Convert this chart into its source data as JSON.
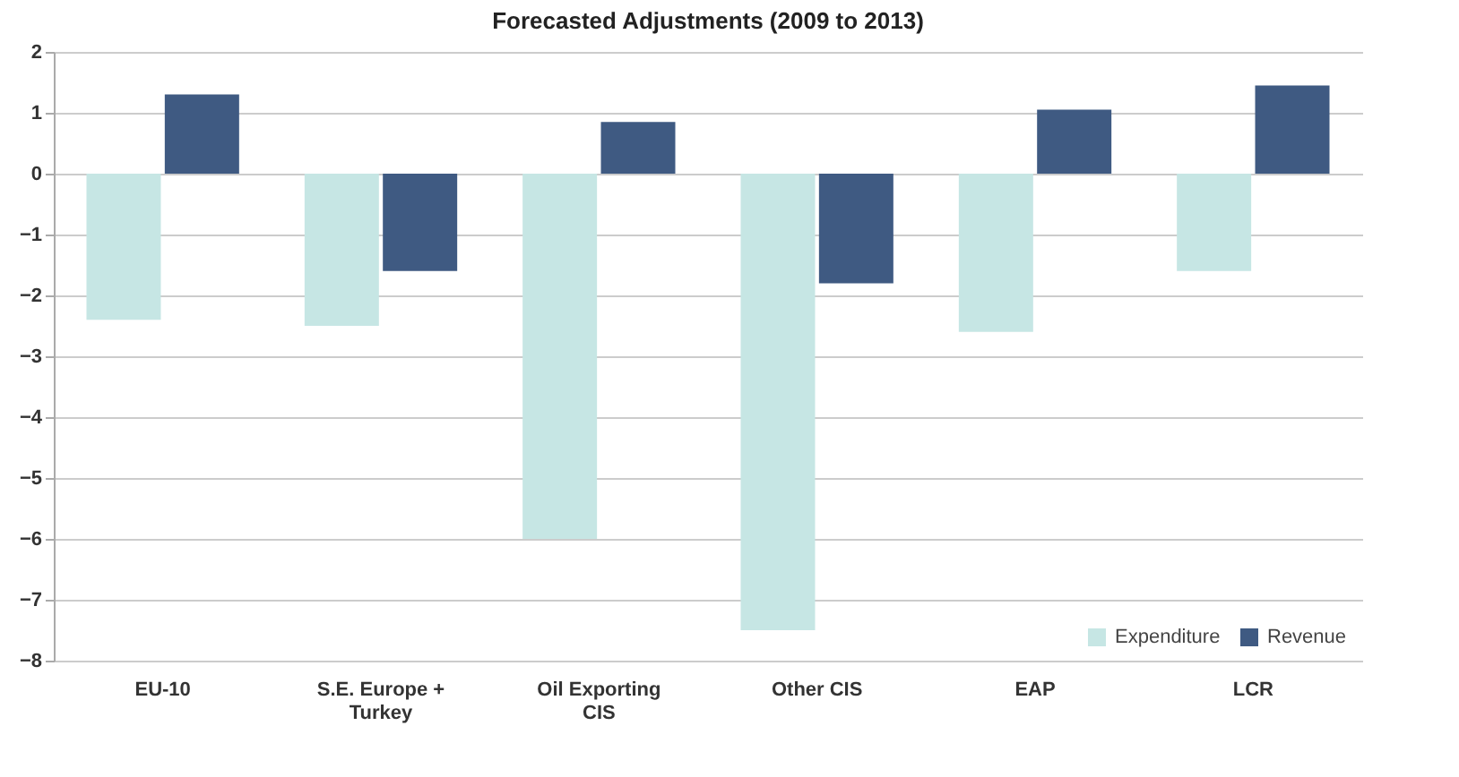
{
  "chart_data": {
    "type": "bar",
    "title": "Forecasted Adjustments (2009 to 2013)",
    "categories": [
      "EU-10",
      "S.E. Europe + Turkey",
      "Oil Exporting CIS",
      "Other CIS",
      "EAP",
      "LCR"
    ],
    "series": [
      {
        "name": "Expenditure",
        "color": "#c6e6e4",
        "values": [
          -2.4,
          -2.5,
          -6.0,
          -7.5,
          -2.6,
          -1.6
        ]
      },
      {
        "name": "Revenue",
        "color": "#3f5a82",
        "values": [
          1.3,
          -1.6,
          0.85,
          -1.8,
          1.05,
          1.45
        ]
      }
    ],
    "ylim": [
      -8,
      2
    ],
    "yticks": [
      -8,
      -7,
      -6,
      -5,
      -4,
      -3,
      -2,
      -1,
      0,
      1,
      2
    ],
    "grid": "y",
    "legend": "bottom right"
  }
}
